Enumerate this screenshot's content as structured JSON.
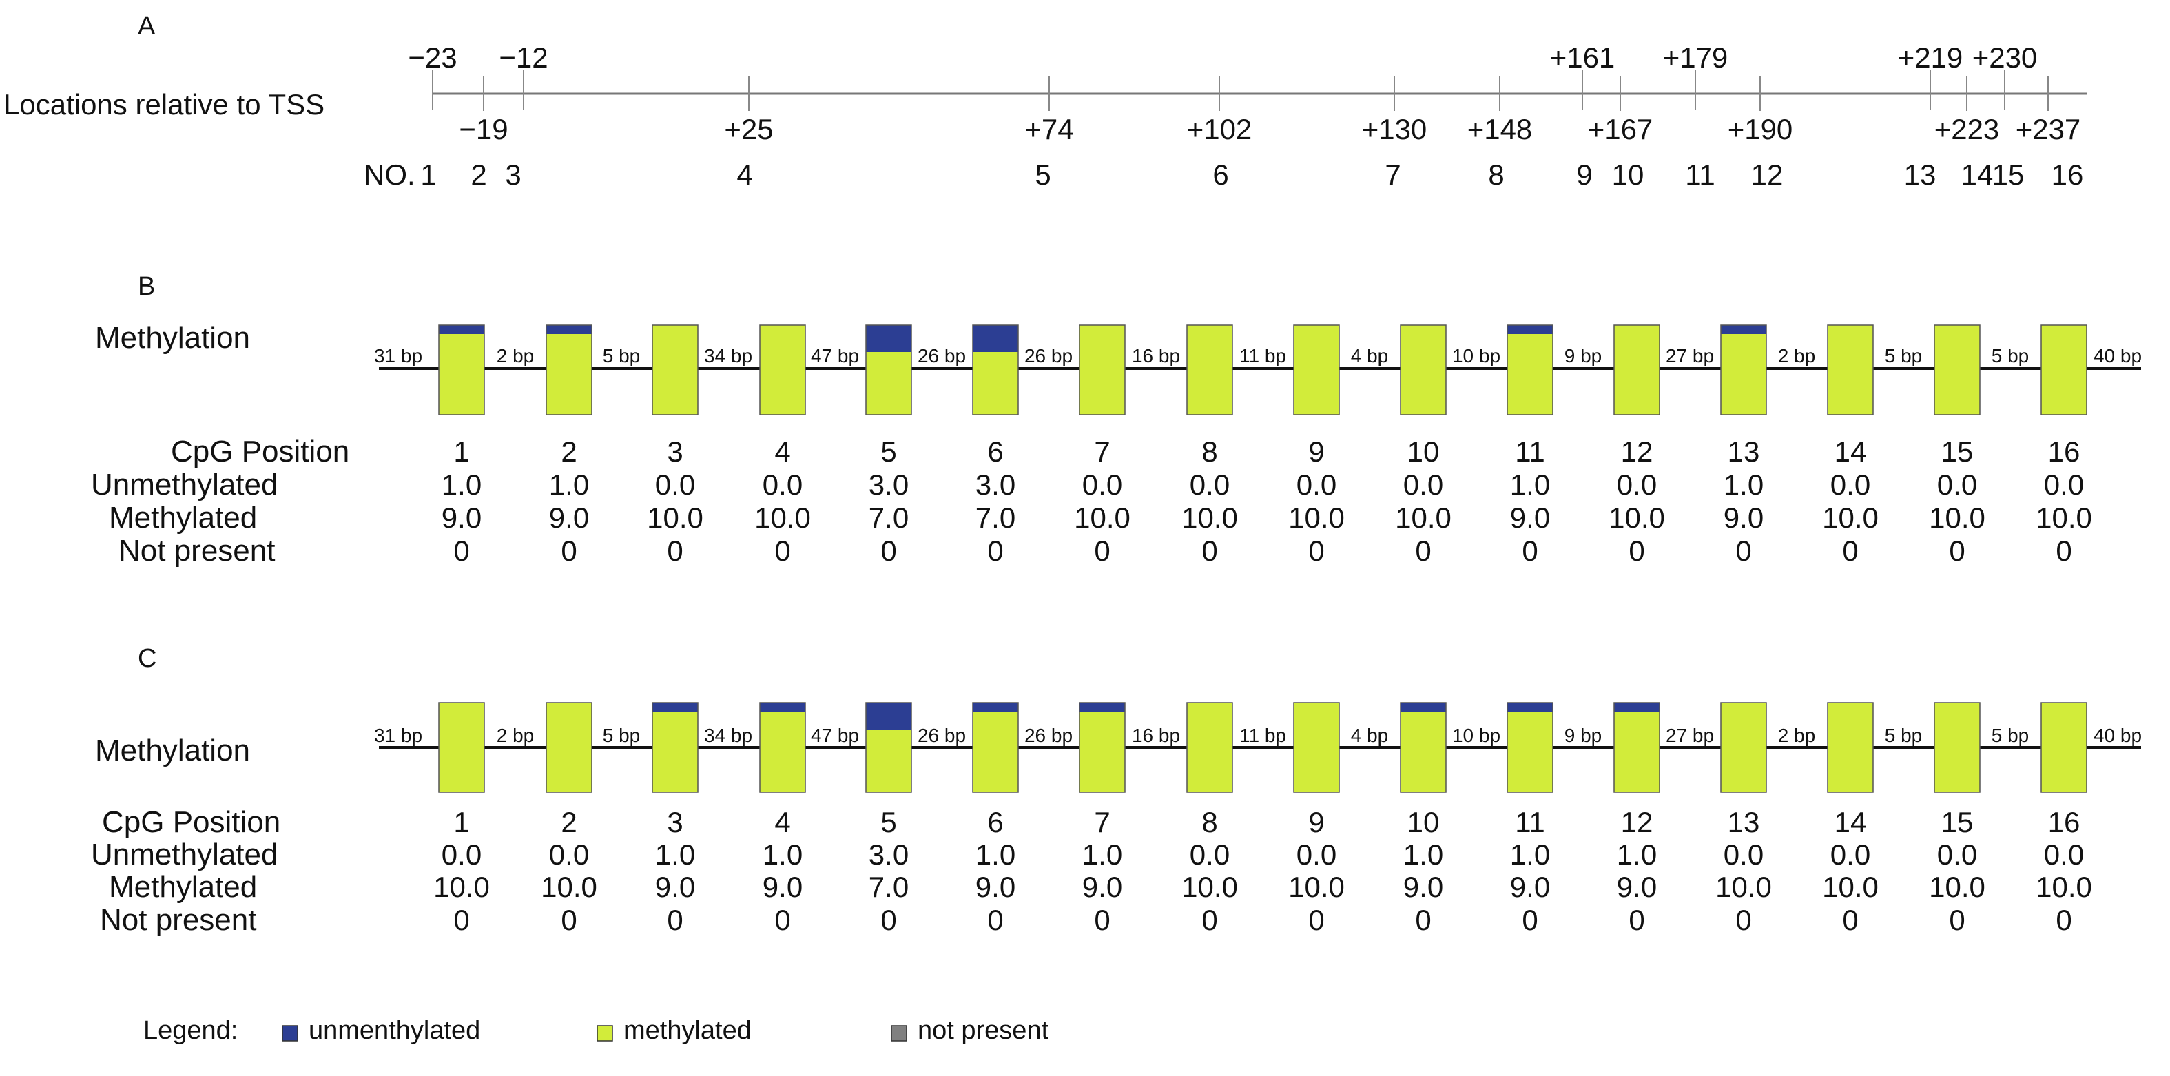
{
  "colors": {
    "unmethylated": "#2c3e93",
    "methylated": "#d2ec3a",
    "not_present": "#808080",
    "line": "#444444"
  },
  "panel_a": {
    "letter": "A",
    "axis_label": "Locations relative to TSS",
    "no_label": "NO.",
    "sites": [
      {
        "no": "1",
        "loc": "−23",
        "side": "above"
      },
      {
        "no": "2",
        "loc": "−19",
        "side": "below"
      },
      {
        "no": "3",
        "loc": "−12",
        "side": "above"
      },
      {
        "no": "4",
        "loc": "+25",
        "side": "below"
      },
      {
        "no": "5",
        "loc": "+74",
        "side": "below"
      },
      {
        "no": "6",
        "loc": "+102",
        "side": "below"
      },
      {
        "no": "7",
        "loc": "+130",
        "side": "below"
      },
      {
        "no": "8",
        "loc": "+148",
        "side": "below"
      },
      {
        "no": "9",
        "loc": "+161",
        "side": "above"
      },
      {
        "no": "10",
        "loc": "+167",
        "side": "below"
      },
      {
        "no": "11",
        "loc": "+179",
        "side": "above"
      },
      {
        "no": "12",
        "loc": "+190",
        "side": "below"
      },
      {
        "no": "13",
        "loc": "+219",
        "side": "above"
      },
      {
        "no": "14",
        "loc": "+223",
        "side": "below"
      },
      {
        "no": "15",
        "loc": "+230",
        "side": "above"
      },
      {
        "no": "16",
        "loc": "+237",
        "side": "below"
      }
    ]
  },
  "panels": [
    {
      "letter": "B",
      "methylation_label": "Methylation",
      "bp_labels": [
        "31 bp",
        "2 bp",
        "5 bp",
        "34 bp",
        "47 bp",
        "26 bp",
        "26 bp",
        "16 bp",
        "11 bp",
        "4 bp",
        "10 bp",
        "9 bp",
        "27 bp",
        "2 bp",
        "5 bp",
        "5 bp",
        "40 bp"
      ],
      "row_labels": {
        "position": "CpG Position",
        "unmethylated": "Unmethylated",
        "methylated": "Methylated",
        "not_present": "Not present"
      },
      "cpg": [
        {
          "pos": "1",
          "unmeth": "1.0",
          "meth": "9.0",
          "np": "0"
        },
        {
          "pos": "2",
          "unmeth": "1.0",
          "meth": "9.0",
          "np": "0"
        },
        {
          "pos": "3",
          "unmeth": "0.0",
          "meth": "10.0",
          "np": "0"
        },
        {
          "pos": "4",
          "unmeth": "0.0",
          "meth": "10.0",
          "np": "0"
        },
        {
          "pos": "5",
          "unmeth": "3.0",
          "meth": "7.0",
          "np": "0"
        },
        {
          "pos": "6",
          "unmeth": "3.0",
          "meth": "7.0",
          "np": "0"
        },
        {
          "pos": "7",
          "unmeth": "0.0",
          "meth": "10.0",
          "np": "0"
        },
        {
          "pos": "8",
          "unmeth": "0.0",
          "meth": "10.0",
          "np": "0"
        },
        {
          "pos": "9",
          "unmeth": "0.0",
          "meth": "10.0",
          "np": "0"
        },
        {
          "pos": "10",
          "unmeth": "0.0",
          "meth": "10.0",
          "np": "0"
        },
        {
          "pos": "11",
          "unmeth": "1.0",
          "meth": "9.0",
          "np": "0"
        },
        {
          "pos": "12",
          "unmeth": "0.0",
          "meth": "10.0",
          "np": "0"
        },
        {
          "pos": "13",
          "unmeth": "1.0",
          "meth": "9.0",
          "np": "0"
        },
        {
          "pos": "14",
          "unmeth": "0.0",
          "meth": "10.0",
          "np": "0"
        },
        {
          "pos": "15",
          "unmeth": "0.0",
          "meth": "10.0",
          "np": "0"
        },
        {
          "pos": "16",
          "unmeth": "0.0",
          "meth": "10.0",
          "np": "0"
        }
      ]
    },
    {
      "letter": "C",
      "methylation_label": "Methylation",
      "bp_labels": [
        "31 bp",
        "2 bp",
        "5 bp",
        "34 bp",
        "47 bp",
        "26 bp",
        "26 bp",
        "16 bp",
        "11 bp",
        "4 bp",
        "10 bp",
        "9 bp",
        "27 bp",
        "2 bp",
        "5 bp",
        "5 bp",
        "40 bp"
      ],
      "row_labels": {
        "position": "CpG Position",
        "unmethylated": "Unmethylated",
        "methylated": "Methylated",
        "not_present": "Not present"
      },
      "cpg": [
        {
          "pos": "1",
          "unmeth": "0.0",
          "meth": "10.0",
          "np": "0"
        },
        {
          "pos": "2",
          "unmeth": "0.0",
          "meth": "10.0",
          "np": "0"
        },
        {
          "pos": "3",
          "unmeth": "1.0",
          "meth": "9.0",
          "np": "0"
        },
        {
          "pos": "4",
          "unmeth": "1.0",
          "meth": "9.0",
          "np": "0"
        },
        {
          "pos": "5",
          "unmeth": "3.0",
          "meth": "7.0",
          "np": "0"
        },
        {
          "pos": "6",
          "unmeth": "1.0",
          "meth": "9.0",
          "np": "0"
        },
        {
          "pos": "7",
          "unmeth": "1.0",
          "meth": "9.0",
          "np": "0"
        },
        {
          "pos": "8",
          "unmeth": "0.0",
          "meth": "10.0",
          "np": "0"
        },
        {
          "pos": "9",
          "unmeth": "0.0",
          "meth": "10.0",
          "np": "0"
        },
        {
          "pos": "10",
          "unmeth": "1.0",
          "meth": "9.0",
          "np": "0"
        },
        {
          "pos": "11",
          "unmeth": "1.0",
          "meth": "9.0",
          "np": "0"
        },
        {
          "pos": "12",
          "unmeth": "1.0",
          "meth": "9.0",
          "np": "0"
        },
        {
          "pos": "13",
          "unmeth": "0.0",
          "meth": "10.0",
          "np": "0"
        },
        {
          "pos": "14",
          "unmeth": "0.0",
          "meth": "10.0",
          "np": "0"
        },
        {
          "pos": "15",
          "unmeth": "0.0",
          "meth": "10.0",
          "np": "0"
        },
        {
          "pos": "16",
          "unmeth": "0.0",
          "meth": "10.0",
          "np": "0"
        }
      ]
    }
  ],
  "legend": {
    "label": "Legend:",
    "items": [
      {
        "key": "unmethylated",
        "text": "unmenthylated"
      },
      {
        "key": "methylated",
        "text": "methylated"
      },
      {
        "key": "not_present",
        "text": "not present"
      }
    ]
  }
}
